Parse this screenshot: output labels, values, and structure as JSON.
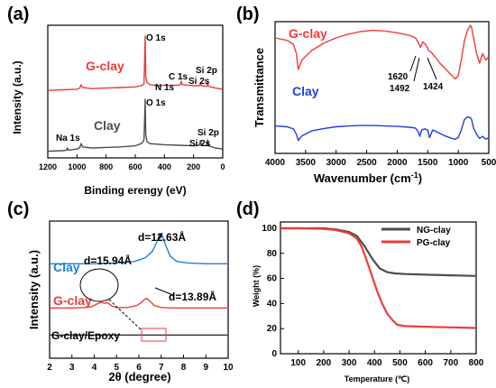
{
  "colors": {
    "red": "#ee3b3b",
    "gray": "#4d4d4d",
    "blue": "#1f3fe0",
    "black": "#000000"
  },
  "chart_data": [
    {
      "panel": "(a)",
      "type": "line",
      "xlabel": "Binding erengy (eV)",
      "ylabel": "Intensity (a.u.)",
      "xlim": [
        1200,
        0
      ],
      "x_ticks": [
        1200,
        1000,
        800,
        600,
        400,
        200,
        0
      ],
      "series": [
        {
          "name": "G-clay",
          "color": "#ee3b3b",
          "x": [
            1200,
            1100,
            1000,
            980,
            972,
            960,
            900,
            800,
            700,
            600,
            560,
            545,
            540,
            532,
            528,
            520,
            500,
            450,
            400,
            300,
            290,
            284,
            280,
            200,
            160,
            153,
            148,
            110,
            103,
            98,
            50,
            0
          ],
          "y": [
            0.06,
            0.07,
            0.08,
            0.1,
            0.16,
            0.11,
            0.09,
            0.1,
            0.11,
            0.12,
            0.14,
            0.16,
            0.18,
            1.0,
            0.3,
            0.2,
            0.16,
            0.14,
            0.15,
            0.15,
            0.17,
            0.22,
            0.16,
            0.14,
            0.14,
            0.19,
            0.14,
            0.13,
            0.2,
            0.13,
            0.1,
            0.08
          ]
        },
        {
          "name": "Clay",
          "color": "#4d4d4d",
          "x": [
            1200,
            1100,
            1072,
            1065,
            1060,
            1000,
            980,
            972,
            960,
            900,
            800,
            700,
            600,
            560,
            545,
            540,
            532,
            528,
            520,
            500,
            400,
            300,
            200,
            160,
            153,
            148,
            110,
            103,
            98,
            50,
            0
          ],
          "y": [
            0.04,
            0.05,
            0.06,
            0.1,
            0.06,
            0.08,
            0.11,
            0.18,
            0.12,
            0.1,
            0.11,
            0.12,
            0.14,
            0.18,
            0.22,
            0.26,
            1.0,
            0.35,
            0.22,
            0.18,
            0.16,
            0.15,
            0.14,
            0.15,
            0.24,
            0.15,
            0.14,
            0.25,
            0.14,
            0.1,
            0.08
          ]
        }
      ],
      "annotations": [
        "O 1s",
        "C 1s",
        "N 1s",
        "Si 2p",
        "Si 2s",
        "O 1s",
        "Na 1s",
        "Si 2p",
        "Si 2s"
      ]
    },
    {
      "panel": "(b)",
      "type": "line",
      "xlabel": "Wavenumber (cm",
      "xlabel_sup": "-1",
      "xlabel_end": ")",
      "ylabel": "Transmittance",
      "xlim": [
        4000,
        500
      ],
      "x_ticks": [
        4000,
        3500,
        3000,
        2500,
        2000,
        1500,
        1000,
        500
      ],
      "series": [
        {
          "name": "G-clay",
          "color": "#ee3b3b",
          "x": [
            4000,
            3800,
            3700,
            3650,
            3620,
            3560,
            3400,
            3200,
            3000,
            2800,
            2600,
            2400,
            2200,
            2000,
            1800,
            1700,
            1650,
            1620,
            1580,
            1540,
            1500,
            1492,
            1450,
            1424,
            1380,
            1300,
            1200,
            1100,
            1050,
            1000,
            950,
            900,
            850,
            800,
            780,
            750,
            700,
            650,
            600,
            550,
            500
          ],
          "y": [
            0.8,
            0.76,
            0.7,
            0.55,
            0.3,
            0.45,
            0.6,
            0.72,
            0.8,
            0.86,
            0.9,
            0.92,
            0.91,
            0.88,
            0.84,
            0.8,
            0.72,
            0.65,
            0.74,
            0.7,
            0.64,
            0.6,
            0.58,
            0.55,
            0.5,
            0.4,
            0.3,
            0.2,
            0.15,
            0.2,
            0.45,
            0.75,
            0.92,
            1.0,
            0.96,
            0.8,
            0.55,
            0.4,
            0.55,
            0.45,
            0.5
          ]
        },
        {
          "name": "Clay",
          "color": "#1f3fe0",
          "x": [
            4000,
            3800,
            3700,
            3650,
            3620,
            3560,
            3400,
            3200,
            3000,
            2800,
            2600,
            2400,
            2200,
            2000,
            1800,
            1700,
            1650,
            1630,
            1600,
            1550,
            1500,
            1470,
            1420,
            1380,
            1300,
            1200,
            1100,
            1050,
            1000,
            950,
            900,
            850,
            800,
            780,
            750,
            700,
            650,
            600,
            550,
            500
          ],
          "y": [
            0.4,
            0.38,
            0.33,
            0.2,
            0.05,
            0.16,
            0.28,
            0.34,
            0.38,
            0.4,
            0.41,
            0.41,
            0.4,
            0.39,
            0.37,
            0.35,
            0.25,
            0.15,
            0.3,
            0.33,
            0.3,
            0.12,
            0.3,
            0.28,
            0.22,
            0.15,
            0.1,
            0.08,
            0.12,
            0.3,
            0.55,
            0.62,
            0.6,
            0.55,
            0.35,
            0.2,
            0.1,
            0.15,
            0.08,
            0.12
          ]
        }
      ],
      "annotations": [
        "1620",
        "1492",
        "1424"
      ]
    },
    {
      "panel": "(c)",
      "type": "line",
      "xlabel": "2θ (degree)",
      "ylabel": "Intensity (a.u.)",
      "xlim": [
        2,
        10
      ],
      "x_ticks": [
        2,
        3,
        4,
        5,
        6,
        7,
        8,
        9,
        10
      ],
      "series": [
        {
          "name": "Clay",
          "color": "#1f7fe0",
          "x": [
            2.0,
            3.0,
            4.0,
            5.0,
            5.8,
            6.3,
            6.6,
            6.8,
            6.95,
            7.05,
            7.2,
            7.4,
            7.7,
            8.2,
            9.0,
            10.0
          ],
          "y": [
            0.62,
            0.62,
            0.62,
            0.63,
            0.65,
            0.7,
            0.78,
            0.9,
            1.0,
            0.98,
            0.86,
            0.72,
            0.65,
            0.63,
            0.62,
            0.62
          ]
        },
        {
          "name": "G-clay",
          "color": "#ee3b3b",
          "x": [
            2.0,
            3.0,
            3.6,
            3.9,
            4.1,
            4.3,
            4.45,
            4.6,
            4.8,
            5.0,
            5.5,
            5.9,
            6.1,
            6.25,
            6.35,
            6.5,
            6.7,
            7.0,
            7.5,
            8.0,
            9.0,
            10.0
          ],
          "y": [
            0.22,
            0.22,
            0.23,
            0.25,
            0.3,
            0.34,
            0.32,
            0.33,
            0.26,
            0.23,
            0.23,
            0.27,
            0.33,
            0.4,
            0.42,
            0.36,
            0.27,
            0.23,
            0.22,
            0.22,
            0.22,
            0.22
          ]
        },
        {
          "name": "G-clay/Epoxy",
          "color": "#333333",
          "x": [
            2.0,
            4.0,
            6.0,
            8.0,
            10.0
          ],
          "y": [
            0.05,
            0.05,
            0.05,
            0.05,
            0.05
          ]
        }
      ],
      "annotations": [
        "d=12.63Å",
        "d=15.94Å",
        "d=13.89Å"
      ]
    },
    {
      "panel": "(d)",
      "type": "line",
      "xlabel": "Temperature (℃)",
      "ylabel": "Weight (%)",
      "xlim": [
        30,
        800
      ],
      "ylim": [
        0,
        105
      ],
      "x_ticks": [
        100,
        200,
        300,
        400,
        500,
        600,
        700,
        800
      ],
      "y_ticks": [
        0,
        20,
        40,
        60,
        80,
        100
      ],
      "series": [
        {
          "name": "NG-clay",
          "color": "#4d4d4d",
          "x": [
            30,
            100,
            200,
            250,
            300,
            330,
            360,
            390,
            420,
            450,
            480,
            520,
            600,
            700,
            800
          ],
          "y": [
            100,
            100,
            100,
            99,
            97,
            94,
            86,
            76,
            68,
            65,
            64,
            63.5,
            63,
            62.5,
            62
          ]
        },
        {
          "name": "PG-clay",
          "color": "#ee3b3b",
          "x": [
            30,
            100,
            200,
            250,
            300,
            330,
            350,
            370,
            390,
            410,
            430,
            450,
            470,
            490,
            520,
            600,
            700,
            800
          ],
          "y": [
            100,
            100,
            99.5,
            98.5,
            96,
            92,
            85,
            74,
            62,
            50,
            40,
            32,
            27,
            23,
            22,
            21.5,
            21,
            20.5
          ]
        }
      ],
      "legend_position": "top-right"
    }
  ]
}
